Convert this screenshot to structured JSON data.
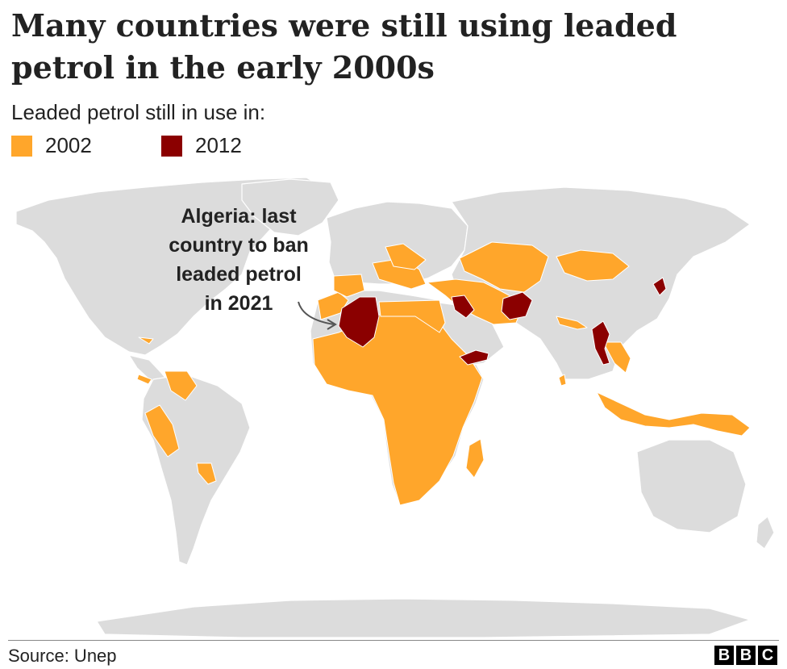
{
  "title": "Many countries were still using leaded petrol in the early 2000s",
  "legend": {
    "title": "Leaded petrol still in use in:",
    "items": [
      {
        "label": "2002",
        "color": "#FFA62B"
      },
      {
        "label": "2012",
        "color": "#8B0000"
      }
    ]
  },
  "annotation": {
    "text_lines": [
      "Algeria: last",
      "country to ban",
      "leaded petrol",
      "in 2021"
    ]
  },
  "map_data": {
    "land_color": "#DCDCDC",
    "border_color": "#FFFFFF",
    "still_in_2012": [
      "Algeria",
      "Iraq",
      "Yemen",
      "Afghanistan",
      "Myanmar",
      "North Korea"
    ],
    "still_in_2002_examples": [
      "Sub-Saharan Africa",
      "Egypt",
      "Libya",
      "Morocco",
      "Spain",
      "Portugal",
      "Italy",
      "Eastern Europe",
      "Turkey",
      "Iran",
      "Central Asia",
      "Mongolia",
      "Venezuela",
      "Peru",
      "Paraguay",
      "Indonesia",
      "Papua New Guinea",
      "Madagascar",
      "Cuba",
      "Central America",
      "Sri Lanka",
      "Vietnam",
      "Nepal",
      "Bangladesh"
    ]
  },
  "footer": {
    "source": "Source: Unep",
    "logo_letters": [
      "B",
      "B",
      "C"
    ]
  }
}
